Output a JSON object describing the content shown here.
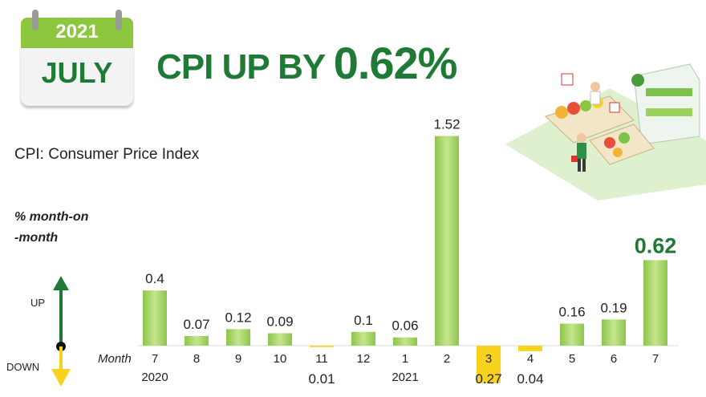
{
  "calendar": {
    "year": "2021",
    "month": "JULY"
  },
  "headline": {
    "prefix": "CPI UP BY ",
    "value": "0.62%"
  },
  "subtitle": "CPI: Consumer Price Index",
  "unit_line1": "% month-on",
  "unit_line2": "-month",
  "legend": {
    "up": "UP",
    "down": "DOWN"
  },
  "colors": {
    "green": "#1e7a34",
    "bar_green": "#a6d25b",
    "bar_yellow": "#f7d21e",
    "accent": "#8dc63f"
  },
  "chart_data": {
    "type": "bar",
    "xlabel": "Month",
    "categories": [
      "7",
      "8",
      "9",
      "10",
      "11",
      "12",
      "1",
      "2",
      "3",
      "4",
      "5",
      "6",
      "7"
    ],
    "year_labels": [
      {
        "index": 0,
        "text": "2020"
      },
      {
        "index": 6,
        "text": "2021"
      }
    ],
    "values": [
      0.4,
      0.07,
      0.12,
      0.09,
      -0.01,
      0.1,
      0.06,
      1.52,
      -0.27,
      -0.04,
      0.16,
      0.19,
      0.62
    ],
    "value_labels": [
      "0.4",
      "0.07",
      "0.12",
      "0.09",
      "0.01",
      "0.1",
      "0.06",
      "1.52",
      "0.27",
      "0.04",
      "0.16",
      "0.19",
      "0.62"
    ],
    "highlight_index": 12
  }
}
